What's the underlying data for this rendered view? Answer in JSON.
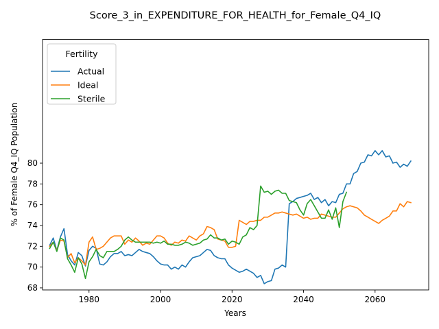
{
  "chart_data": {
    "type": "line",
    "title": "Score_3_in_EXPENDITURE_FOR_HEALTH_for_Female_Q4_IQ",
    "xlabel": "Years",
    "ylabel": "% of Female Q4_IQ Population",
    "xlim": [
      1967,
      2075
    ],
    "ylim": [
      67.8,
      91.9
    ],
    "xticks": [
      1980,
      2000,
      2020,
      2040,
      2060
    ],
    "yticks": [
      68,
      70,
      72,
      74,
      76,
      78,
      80
    ],
    "grid": false,
    "legend": {
      "title": "Fertility",
      "placement": "top-left"
    },
    "x": [
      1969,
      1970,
      1971,
      1972,
      1973,
      1974,
      1975,
      1976,
      1977,
      1978,
      1979,
      1980,
      1981,
      1982,
      1983,
      1984,
      1985,
      1986,
      1987,
      1988,
      1989,
      1990,
      1991,
      1992,
      1993,
      1994,
      1995,
      1996,
      1997,
      1998,
      1999,
      2000,
      2001,
      2002,
      2003,
      2004,
      2005,
      2006,
      2007,
      2008,
      2009,
      2010,
      2011,
      2012,
      2013,
      2014,
      2015,
      2016,
      2017,
      2018,
      2019,
      2020,
      2021,
      2022,
      2023,
      2024,
      2025,
      2026,
      2027,
      2028,
      2029,
      2030,
      2031,
      2032,
      2033,
      2034,
      2035,
      2036,
      2037,
      2038,
      2039,
      2040,
      2041,
      2042,
      2043,
      2044,
      2045,
      2046,
      2047,
      2048,
      2049,
      2050,
      2051,
      2052,
      2053,
      2054,
      2055,
      2056,
      2057,
      2058,
      2059,
      2060,
      2061,
      2062,
      2063,
      2064,
      2065,
      2066,
      2067,
      2068,
      2069,
      2070
    ],
    "series": [
      {
        "name": "Actual",
        "color": "#1f77b4",
        "values": [
          72.1,
          72.8,
          71.6,
          72.9,
          73.7,
          71.2,
          70.6,
          70.2,
          71.4,
          71.1,
          70.1,
          71.6,
          72.0,
          71.8,
          70.3,
          70.2,
          70.5,
          71.0,
          71.3,
          71.3,
          71.5,
          71.1,
          71.2,
          71.1,
          71.4,
          71.7,
          71.5,
          71.4,
          71.3,
          71.0,
          70.6,
          70.3,
          70.2,
          70.2,
          69.8,
          70.0,
          69.8,
          70.2,
          70.0,
          70.5,
          70.9,
          71.0,
          71.1,
          71.4,
          71.7,
          71.6,
          71.1,
          70.9,
          70.8,
          70.8,
          70.2,
          69.9,
          69.7,
          69.5,
          69.6,
          69.8,
          69.6,
          69.4,
          69.0,
          69.2,
          68.4,
          68.6,
          68.7,
          69.8,
          69.9,
          70.2,
          70.0,
          76.1,
          76.3,
          76.6,
          76.7,
          76.8,
          76.9,
          77.1,
          76.5,
          76.7,
          76.2,
          76.5,
          75.9,
          76.3,
          76.2,
          77.0,
          77.1,
          78.0,
          78.0,
          79.0,
          79.2,
          80.0,
          80.1,
          80.8,
          80.7,
          81.2,
          80.8,
          81.2,
          80.6,
          80.7,
          80.0,
          80.1,
          79.6,
          79.9,
          79.7,
          80.2
        ]
      },
      {
        "name": "Ideal",
        "color": "#ff7f0e",
        "values": [
          72.0,
          72.4,
          71.6,
          72.6,
          72.5,
          70.9,
          71.3,
          70.4,
          70.9,
          70.6,
          70.2,
          72.4,
          72.9,
          71.7,
          71.8,
          72.0,
          72.4,
          72.8,
          73.0,
          73.0,
          73.0,
          72.2,
          72.6,
          72.4,
          72.8,
          72.5,
          72.1,
          72.3,
          72.2,
          72.6,
          73.0,
          73.0,
          72.8,
          72.3,
          72.1,
          72.4,
          72.3,
          72.6,
          72.5,
          73.0,
          72.8,
          72.6,
          73.0,
          73.2,
          73.9,
          73.8,
          73.6,
          72.7,
          72.6,
          72.5,
          71.9,
          71.9,
          72.0,
          74.5,
          74.3,
          74.1,
          74.4,
          74.4,
          74.5,
          74.5,
          74.8,
          74.8,
          75.0,
          75.2,
          75.2,
          75.3,
          75.2,
          75.1,
          75.0,
          75.1,
          74.9,
          74.7,
          74.8,
          74.6,
          74.7,
          74.7,
          75.1,
          75.0,
          74.9,
          74.8,
          74.8,
          75.2,
          75.6,
          75.8,
          75.9,
          75.8,
          75.7,
          75.4,
          75.0,
          74.8,
          74.6,
          74.4,
          74.2,
          74.5,
          74.7,
          74.9,
          75.4,
          75.4,
          76.1,
          75.8,
          76.3,
          76.2
        ]
      },
      {
        "name": "Sterile",
        "color": "#2ca02c",
        "values": [
          71.8,
          72.4,
          71.5,
          72.8,
          72.6,
          70.8,
          70.2,
          69.5,
          70.9,
          70.3,
          68.9,
          70.5,
          71.0,
          71.7,
          71.1,
          70.9,
          71.5,
          71.5,
          71.5,
          71.7,
          72.0,
          72.6,
          72.9,
          72.6,
          72.4,
          72.4,
          72.4,
          72.4,
          72.4,
          72.3,
          72.4,
          72.3,
          72.5,
          72.2,
          72.2,
          72.1,
          72.1,
          72.2,
          72.4,
          72.3,
          72.1,
          72.2,
          72.3,
          72.6,
          72.7,
          73.1,
          72.8,
          72.8,
          72.6,
          72.7,
          72.2,
          72.5,
          72.4,
          72.2,
          72.9,
          73.1,
          73.8,
          73.6,
          74.0,
          77.8,
          77.2,
          77.3,
          77.0,
          77.3,
          77.4,
          77.1,
          77.1,
          76.4,
          76.3,
          76.2,
          75.5,
          75.0,
          76.1,
          76.5,
          75.9,
          75.3,
          74.7,
          74.7,
          75.5,
          74.6,
          75.7,
          73.8,
          76.3,
          77.2,
          null,
          null,
          null,
          null,
          null,
          null,
          null,
          null,
          null,
          null,
          null,
          null,
          null,
          null,
          null,
          null,
          null,
          null
        ]
      }
    ]
  }
}
